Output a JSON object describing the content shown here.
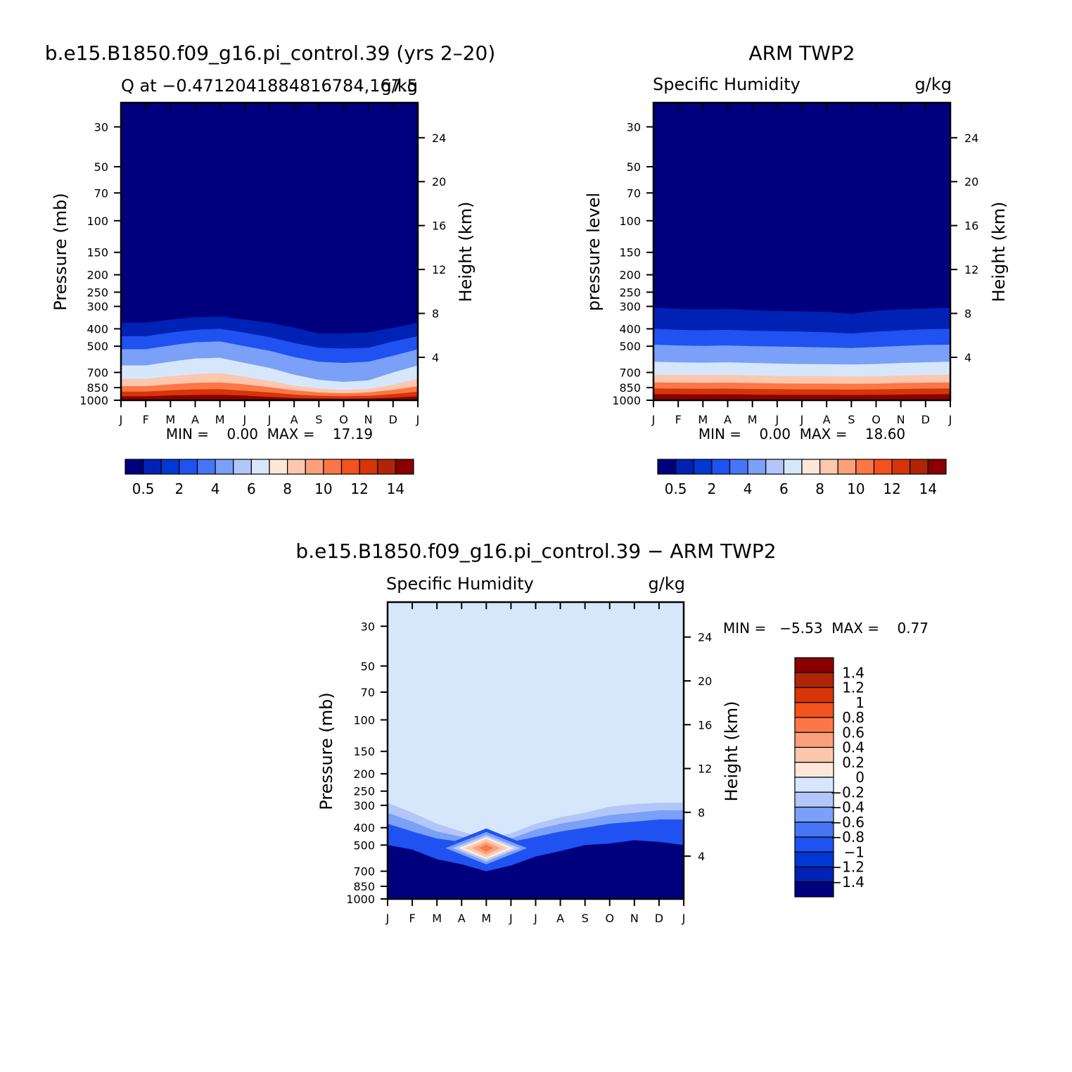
{
  "panels": [
    {
      "id": "model",
      "title": "b.e15.B1850.f09_g16.pi_control.39 (yrs 2–20)",
      "left_label": "Q at −0.4712041884816784,167.5",
      "right_label": "g/kg",
      "ylabel_left": "Pressure (mb)",
      "ylabel_right": "Height (km)",
      "minmax": "MIN =    0.00  MAX =    17.19"
    },
    {
      "id": "obs",
      "title": "ARM TWP2",
      "left_label": "Specific Humidity",
      "right_label": "g/kg",
      "ylabel_left": "pressure level",
      "ylabel_right": "Height (km)",
      "minmax": "MIN =    0.00  MAX =    18.60"
    },
    {
      "id": "diff",
      "title": "b.e15.B1850.f09_g16.pi_control.39 − ARM TWP2",
      "left_label": "Specific Humidity",
      "right_label": "g/kg",
      "ylabel_left": "Pressure (mb)",
      "ylabel_right": "Height (km)",
      "minmax": "MIN =   −5.53  MAX =    0.77"
    }
  ],
  "axes": {
    "months": [
      "J",
      "F",
      "M",
      "A",
      "M",
      "J",
      "J",
      "A",
      "S",
      "O",
      "N",
      "D",
      "J"
    ],
    "pressure_ticks": [
      "30",
      "50",
      "70",
      "100",
      "150",
      "200",
      "250",
      "300",
      "400",
      "500",
      "700",
      "850",
      "1000"
    ],
    "pressure_values": [
      30,
      50,
      70,
      100,
      150,
      200,
      250,
      300,
      400,
      500,
      700,
      850,
      1000
    ],
    "height_ticks": [
      "24",
      "20",
      "16",
      "12",
      "8",
      "4"
    ],
    "height_values": [
      24,
      20,
      16,
      12,
      8,
      4
    ]
  },
  "colorbars": {
    "humidity": {
      "labels": [
        "0.5",
        "2",
        "4",
        "6",
        "8",
        "10",
        "12",
        "14"
      ],
      "colors": [
        "#00007f",
        "#0022b4",
        "#0038d4",
        "#1f52f0",
        "#4675f5",
        "#7aa0f7",
        "#b2c6fa",
        "#d6e7fc",
        "#fde8d8",
        "#fcc7ad",
        "#fba07a",
        "#fb7747",
        "#f2521e",
        "#d53508",
        "#b02508",
        "#8a0000"
      ]
    },
    "difference": {
      "labels": [
        "1.4",
        "1.2",
        "1",
        "0.8",
        "0.6",
        "0.4",
        "0.2",
        "0",
        "−0.2",
        "−0.4",
        "−0.6",
        "−0.8",
        "−1",
        "−1.2",
        "−1.4"
      ],
      "colors": [
        "#8a0000",
        "#b02508",
        "#d53508",
        "#f2521e",
        "#fb7747",
        "#fba07a",
        "#fcc7ad",
        "#fde8d8",
        "#d6e7fc",
        "#b2c6fa",
        "#7aa0f7",
        "#4675f5",
        "#1f52f0",
        "#0038d4",
        "#0022b4",
        "#00007f"
      ]
    }
  },
  "chart_data": [
    {
      "type": "heatmap",
      "title": "b.e15.B1850.f09_g16.pi_control.39 (yrs 2–20)",
      "xlabel": "",
      "ylabel": "Pressure (mb)",
      "y2label": "Height (km)",
      "x": [
        "J",
        "F",
        "M",
        "A",
        "M",
        "J",
        "J",
        "A",
        "S",
        "O",
        "N",
        "D",
        "J"
      ],
      "ylim": [
        1000,
        30
      ],
      "min": 0.0,
      "max": 17.19,
      "contour_levels_hpa_by_month": {
        "0.5": [
          370,
          370,
          355,
          345,
          342,
          355,
          370,
          395,
          425,
          425,
          418,
          395,
          370
        ],
        "2": [
          440,
          440,
          420,
          405,
          400,
          420,
          445,
          480,
          510,
          515,
          510,
          470,
          440
        ],
        "4": [
          520,
          520,
          495,
          475,
          470,
          500,
          530,
          575,
          610,
          620,
          610,
          565,
          520
        ],
        "6": [
          640,
          640,
          610,
          585,
          580,
          620,
          660,
          720,
          770,
          790,
          775,
          700,
          640
        ],
        "8": [
          760,
          760,
          735,
          715,
          705,
          740,
          780,
          830,
          860,
          875,
          865,
          820,
          760
        ],
        "10": [
          835,
          835,
          815,
          800,
          795,
          815,
          845,
          880,
          905,
          915,
          905,
          875,
          835
        ],
        "12": [
          895,
          895,
          880,
          870,
          868,
          885,
          905,
          930,
          945,
          950,
          945,
          925,
          895
        ],
        "14": [
          950,
          950,
          940,
          935,
          932,
          942,
          958,
          972,
          978,
          980,
          978,
          968,
          950
        ]
      }
    },
    {
      "type": "heatmap",
      "title": "ARM TWP2",
      "xlabel": "",
      "ylabel": "pressure level",
      "y2label": "Height (km)",
      "x": [
        "J",
        "F",
        "M",
        "A",
        "M",
        "J",
        "J",
        "A",
        "S",
        "O",
        "N",
        "D",
        "J"
      ],
      "ylim": [
        1000,
        30
      ],
      "min": 0.0,
      "max": 18.6,
      "contour_levels_hpa_by_month": {
        "0.5": [
          305,
          310,
          312,
          310,
          315,
          318,
          320,
          322,
          330,
          318,
          312,
          308,
          305
        ],
        "2": [
          400,
          405,
          408,
          405,
          410,
          412,
          415,
          418,
          425,
          415,
          408,
          402,
          400
        ],
        "4": [
          490,
          495,
          498,
          495,
          500,
          502,
          505,
          508,
          512,
          505,
          498,
          492,
          490
        ],
        "6": [
          610,
          615,
          618,
          615,
          620,
          625,
          628,
          630,
          632,
          628,
          620,
          615,
          610
        ],
        "8": [
          720,
          722,
          725,
          722,
          728,
          732,
          735,
          735,
          738,
          735,
          728,
          724,
          720
        ],
        "10": [
          795,
          798,
          800,
          798,
          802,
          806,
          808,
          808,
          810,
          808,
          802,
          798,
          795
        ],
        "12": [
          860,
          862,
          864,
          862,
          866,
          868,
          870,
          870,
          872,
          870,
          866,
          862,
          860
        ],
        "14": [
          925,
          926,
          928,
          926,
          930,
          932,
          934,
          934,
          935,
          934,
          930,
          927,
          925
        ]
      }
    },
    {
      "type": "heatmap",
      "title": "b.e15.B1850.f09_g16.pi_control.39 − ARM TWP2",
      "xlabel": "",
      "ylabel": "Pressure (mb)",
      "y2label": "Height (km)",
      "x": [
        "J",
        "F",
        "M",
        "A",
        "M",
        "J",
        "J",
        "A",
        "S",
        "O",
        "N",
        "D",
        "J"
      ],
      "ylim": [
        1000,
        30
      ],
      "min": -5.53,
      "max": 0.77,
      "background_level": "-0.2",
      "contour_levels_hpa_by_month": {
        "-0.4": [
          290,
          330,
          380,
          420,
          460,
          430,
          380,
          350,
          330,
          305,
          295,
          290,
          290
        ],
        "-0.6": [
          330,
          370,
          420,
          450,
          470,
          460,
          410,
          380,
          360,
          340,
          330,
          320,
          320
        ],
        "-0.8": [
          380,
          420,
          460,
          480,
          485,
          480,
          450,
          420,
          400,
          380,
          370,
          360,
          360
        ],
        "-1.4": [
          500,
          530,
          600,
          640,
          700,
          650,
          580,
          540,
          500,
          490,
          470,
          480,
          500
        ]
      },
      "positive_anomaly": {
        "month": "M",
        "pressure_hpa": 520,
        "peak": 0.77
      }
    }
  ]
}
